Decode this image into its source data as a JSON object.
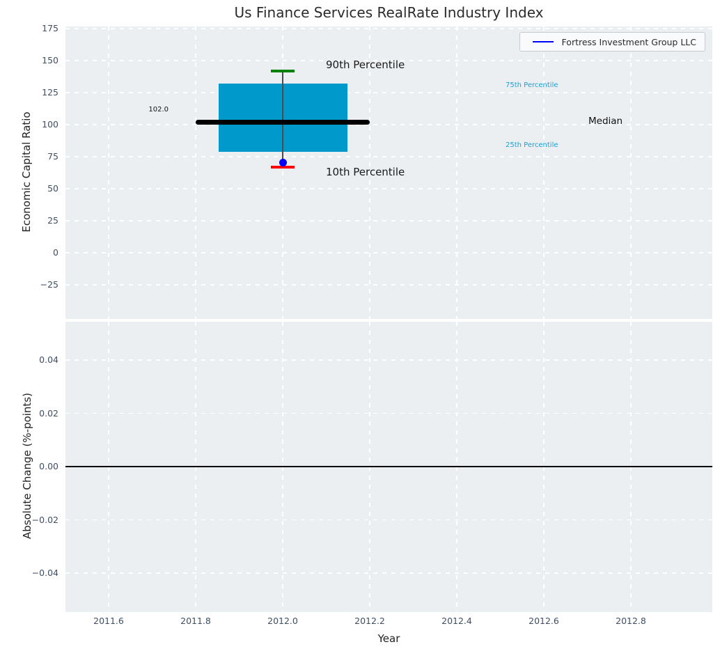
{
  "title": "Us Finance Services RealRate Industry Index",
  "legend": {
    "label": "Fortress Investment Group LLC",
    "line_color": "#0000ff"
  },
  "annotations": {
    "p90_label": "90th Percentile",
    "p10_label": "10th Percentile",
    "p75_label": "75th Percentile",
    "p25_label": "25th Percentile",
    "median_label": "Median",
    "median_value_label": "102.0"
  },
  "colors": {
    "axes_background": "#eceff1",
    "grid": "#ffffff",
    "box_fill": "#0099cc",
    "median_line": "#000000",
    "p90_cap": "#008000",
    "p10_cap": "#ff0000",
    "company_point": "#0000ff",
    "percentile_text": "#1b9fd2",
    "tick_text": "#3e4e63",
    "zero_line": "#000000"
  },
  "chart_data": {
    "type": "boxplot_timeseries",
    "title": "Us Finance Services RealRate Industry Index",
    "top_panel": {
      "ylabel": "Economic Capital Ratio",
      "ylim": [
        -51.6,
        176.6
      ],
      "yticks": [
        175,
        150,
        125,
        100,
        75,
        50,
        25,
        0,
        -25
      ],
      "ytick_labels": [
        "175",
        "150",
        "125",
        "100",
        "75",
        "50",
        "25",
        "0",
        "−25"
      ],
      "grid": true,
      "box": {
        "year": 2012,
        "p90": 142,
        "p75": 132,
        "median": 102,
        "p25": 79,
        "p10": 67,
        "box_half_width_years": 0.148,
        "median_half_width_years": 0.2,
        "cap_half_width_years": 0.027
      },
      "company_point": {
        "name": "Fortress Investment Group LLC",
        "year": 2012,
        "value": 70.5
      }
    },
    "bottom_panel": {
      "ylabel": "Absolute Change (%-points)",
      "ylim": [
        -0.0546,
        0.0544
      ],
      "yticks": [
        0.04,
        0.02,
        0.0,
        -0.02,
        -0.04
      ],
      "ytick_labels": [
        "0.04",
        "0.02",
        "0.00",
        "−0.02",
        "−0.04"
      ],
      "grid": true,
      "zero_line_value": 0.0,
      "series": []
    },
    "x": {
      "label": "Year",
      "xlim": [
        2011.5008,
        2012.9872
      ],
      "xticks": [
        2011.6,
        2011.8,
        2012.0,
        2012.2,
        2012.4,
        2012.6,
        2012.8
      ],
      "xtick_labels": [
        "2011.6",
        "2011.8",
        "2012.0",
        "2012.2",
        "2012.4",
        "2012.6",
        "2012.8"
      ]
    },
    "legend_position": "upper right"
  }
}
